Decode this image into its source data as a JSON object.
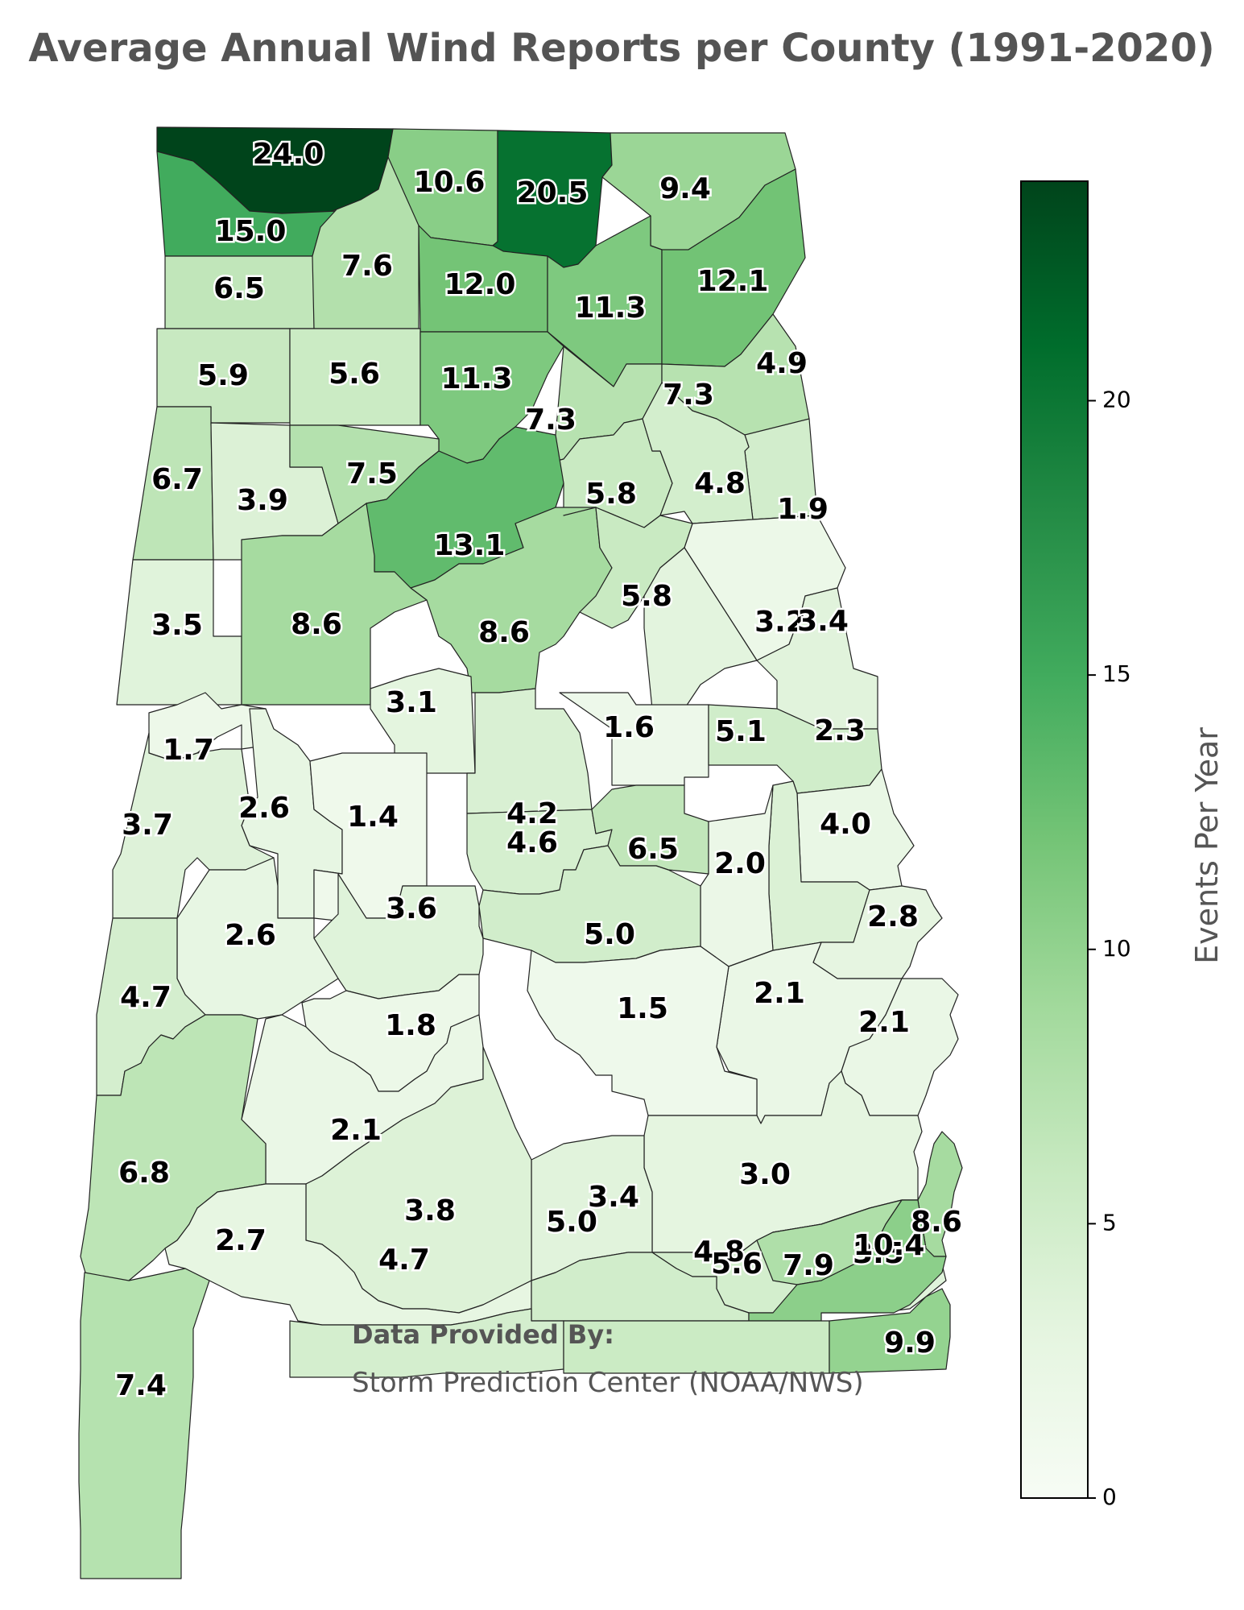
{
  "title": "Average Annual Wind Reports per County (1991-2020)",
  "source": {
    "heading": "Data Provided By:",
    "text": "Storm Prediction Center (NOAA/NWS)"
  },
  "colorbar": {
    "label": "Events Per Year",
    "min": 0,
    "max": 24,
    "ticks": [
      "0",
      "5",
      "10",
      "15",
      "20"
    ],
    "colors": [
      "#f7fcf5",
      "#e5f5e0",
      "#c7e9c0",
      "#a1d99b",
      "#74c476",
      "#41ab5d",
      "#238b45",
      "#006d2c",
      "#00441b"
    ]
  },
  "chart_data": {
    "type": "choropleth",
    "counties": [
      {
        "label": "24.0",
        "value": 24.0
      },
      {
        "label": "10.6",
        "value": 10.6
      },
      {
        "label": "20.5",
        "value": 20.5
      },
      {
        "label": "9.4",
        "value": 9.4
      },
      {
        "label": "15.0",
        "value": 15.0
      },
      {
        "label": "6.5",
        "value": 6.5
      },
      {
        "label": "7.6",
        "value": 7.6
      },
      {
        "label": "12.0",
        "value": 12.0
      },
      {
        "label": "11.3",
        "value": 11.3
      },
      {
        "label": "12.1",
        "value": 12.1
      },
      {
        "label": "5.9",
        "value": 5.9
      },
      {
        "label": "5.6",
        "value": 5.6
      },
      {
        "label": "11.3",
        "value": 11.3
      },
      {
        "label": "7.3",
        "value": 7.3
      },
      {
        "label": "7.3",
        "value": 7.3
      },
      {
        "label": "4.9",
        "value": 4.9
      },
      {
        "label": "6.7",
        "value": 6.7
      },
      {
        "label": "3.9",
        "value": 3.9
      },
      {
        "label": "7.5",
        "value": 7.5
      },
      {
        "label": "5.8",
        "value": 5.8
      },
      {
        "label": "4.8",
        "value": 4.8
      },
      {
        "label": "1.9",
        "value": 1.9
      },
      {
        "label": "13.1",
        "value": 13.1
      },
      {
        "label": "3.5",
        "value": 3.5
      },
      {
        "label": "8.6",
        "value": 8.6
      },
      {
        "label": "8.6",
        "value": 8.6
      },
      {
        "label": "5.8",
        "value": 5.8
      },
      {
        "label": "3.2",
        "value": 3.2
      },
      {
        "label": "3.4",
        "value": 3.4
      },
      {
        "label": "3.1",
        "value": 3.1
      },
      {
        "label": "1.7",
        "value": 1.7
      },
      {
        "label": "1.6",
        "value": 1.6
      },
      {
        "label": "5.1",
        "value": 5.1
      },
      {
        "label": "2.3",
        "value": 2.3
      },
      {
        "label": "2.6",
        "value": 2.6
      },
      {
        "label": "4.2",
        "value": 4.2
      },
      {
        "label": "3.7",
        "value": 3.7
      },
      {
        "label": "1.4",
        "value": 1.4
      },
      {
        "label": "4.6",
        "value": 4.6
      },
      {
        "label": "6.5",
        "value": 6.5
      },
      {
        "label": "4.0",
        "value": 4.0
      },
      {
        "label": "2.0",
        "value": 2.0
      },
      {
        "label": "3.6",
        "value": 3.6
      },
      {
        "label": "2.8",
        "value": 2.8
      },
      {
        "label": "2.6",
        "value": 2.6
      },
      {
        "label": "5.0",
        "value": 5.0
      },
      {
        "label": "2.1",
        "value": 2.1
      },
      {
        "label": "1.5",
        "value": 1.5
      },
      {
        "label": "4.7",
        "value": 4.7
      },
      {
        "label": "1.8",
        "value": 1.8
      },
      {
        "label": "2.1",
        "value": 2.1
      },
      {
        "label": "3.0",
        "value": 3.0
      },
      {
        "label": "2.1",
        "value": 2.1
      },
      {
        "label": "6.8",
        "value": 6.8
      },
      {
        "label": "3.4",
        "value": 3.4
      },
      {
        "label": "3.5",
        "value": 3.5
      },
      {
        "label": "4.8",
        "value": 4.8
      },
      {
        "label": "7.9",
        "value": 7.9
      },
      {
        "label": "8.6",
        "value": 8.6
      },
      {
        "label": "3.8",
        "value": 3.8
      },
      {
        "label": "2.7",
        "value": 2.7
      },
      {
        "label": "5.0",
        "value": 5.0
      },
      {
        "label": "10.4",
        "value": 10.4
      },
      {
        "label": "4.7",
        "value": 4.7
      },
      {
        "label": "5.6",
        "value": 5.6
      },
      {
        "label": "9.9",
        "value": 9.9
      },
      {
        "label": "7.4",
        "value": 7.4
      }
    ]
  }
}
